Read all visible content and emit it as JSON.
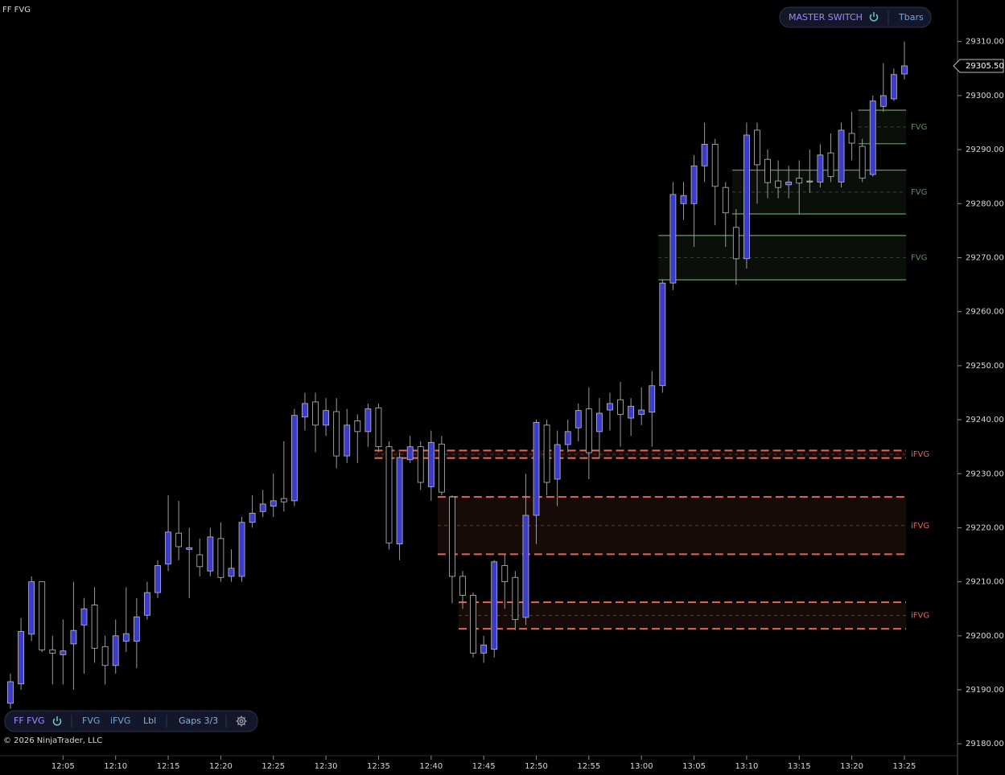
{
  "chart_data": {
    "type": "candlestick",
    "title": "FF FVG",
    "master_switch": "MASTER SWITCH",
    "bar_type": "Tbars",
    "toolbar": [
      "FF FVG",
      "FVG",
      "iFVG",
      "Lbl",
      "Gaps 3/3"
    ],
    "copyright": "© 2026 NinjaTrader, LLC",
    "up_color": "#3c3cc8",
    "down_color": "#000000",
    "x": [
      "12:00",
      "12:01",
      "12:02",
      "12:03",
      "12:04",
      "12:05",
      "12:06",
      "12:07",
      "12:08",
      "12:09",
      "12:10",
      "12:11",
      "12:12",
      "12:13",
      "12:14",
      "12:15",
      "12:16",
      "12:17",
      "12:18",
      "12:19",
      "12:20",
      "12:21",
      "12:22",
      "12:23",
      "12:24",
      "12:25",
      "12:26",
      "12:27",
      "12:28",
      "12:29",
      "12:30",
      "12:31",
      "12:32",
      "12:33",
      "12:34",
      "12:35",
      "12:36",
      "12:37",
      "12:38",
      "12:39",
      "12:40",
      "12:41",
      "12:42",
      "12:43",
      "12:44",
      "12:45",
      "12:46",
      "12:47",
      "12:48",
      "12:49",
      "12:50",
      "12:51",
      "12:52",
      "12:53",
      "12:54",
      "12:55",
      "12:56",
      "12:57",
      "12:58",
      "12:59",
      "13:00",
      "13:01",
      "13:02",
      "13:03",
      "13:04",
      "13:05",
      "13:06",
      "13:07",
      "13:08",
      "13:09",
      "13:10",
      "13:11",
      "13:12",
      "13:13",
      "13:14",
      "13:15",
      "13:16",
      "13:17",
      "13:18",
      "13:19",
      "13:20",
      "13:21",
      "13:22",
      "13:23",
      "13:24",
      "13:25"
    ],
    "open": [
      29187.5,
      29191.1,
      29200.3,
      29210,
      29197.4,
      29196.5,
      29198.5,
      29202,
      29205.7,
      29198,
      29194.5,
      29199,
      29199,
      29203.8,
      29208,
      29213.3,
      29219,
      29216,
      29215,
      29212,
      29218,
      29211,
      29211,
      29221,
      29223,
      29224,
      29225.4,
      29225,
      29240.5,
      29243.3,
      29239,
      29241.5,
      29233.3,
      29239.8,
      29237.8,
      29242.2,
      29235,
      29217,
      29232.6,
      29235,
      29227.6,
      29235.5,
      29225.7,
      29211,
      29207.5,
      29196.8,
      29197.5,
      29213,
      29210.8,
      29203.4,
      29222.3,
      29239,
      29229,
      29235.4,
      29238.5,
      29242,
      29237.8,
      29241.8,
      29243.7,
      29240.3,
      29241,
      29241.4,
      29246.3,
      29265.3,
      29280,
      29280,
      29287,
      29291,
      29283,
      29275.6,
      29269.8,
      29293.6,
      29288.2,
      29284.2,
      29283.5,
      29284.7,
      29284,
      29284,
      29289.4,
      29284,
      29293,
      29290.6,
      29285.4,
      29298,
      29299.4,
      29304
    ],
    "high": [
      29193,
      29203.3,
      29211,
      29210,
      29200,
      29203,
      29210,
      29207,
      29209,
      29200,
      29203,
      29209,
      29207,
      29210,
      29214,
      29226,
      29225,
      29220,
      29218,
      29220,
      29221,
      29216,
      29222,
      29226,
      29227,
      29230,
      29236,
      29242,
      29245,
      29245,
      29244,
      29244,
      29242,
      29241,
      29243,
      29243,
      29236,
      29234,
      29237,
      29236,
      29238,
      29237,
      29226,
      29212,
      29208,
      29200,
      29214,
      29215,
      29212,
      29230,
      29240,
      29240,
      29238,
      29240,
      29243,
      29246,
      29244,
      29245,
      29247,
      29244,
      29246,
      29249,
      29266,
      29284,
      29284,
      29289,
      29295,
      29292,
      29284,
      29279,
      29295,
      29295,
      29290,
      29288,
      29287,
      29288,
      29290,
      29291,
      29293,
      29295,
      29297,
      29292,
      29300,
      29306,
      29305,
      29310
    ],
    "low": [
      29186.5,
      29190,
      29199,
      29197,
      29191,
      29191,
      29190,
      29193,
      29195,
      29191,
      29193,
      29197,
      29194,
      29203,
      29207,
      29212,
      29214,
      29207,
      29211,
      29211,
      29210,
      29210,
      29210,
      29220,
      29222,
      29222,
      29223,
      29224,
      29238,
      29234,
      29237,
      29231,
      29232,
      29232,
      29235,
      29234,
      29216,
      29214,
      29232,
      29227,
      29225,
      29226,
      29206,
      29205,
      29196,
      29195,
      29196,
      29205,
      29201,
      29202,
      29217,
      29226,
      29224,
      29234,
      29236,
      29229,
      29233,
      29238,
      29235,
      29237,
      29239,
      29235,
      29245,
      29264,
      29277,
      29272,
      29284,
      29276,
      29272,
      29265,
      29268,
      29280,
      29281,
      29281,
      29281,
      29278,
      29282,
      29283,
      29284,
      29283,
      29288,
      29284,
      29285,
      29297,
      29299,
      29303
    ],
    "close": [
      29191.5,
      29200.8,
      29210,
      29197.4,
      29196.8,
      29197.2,
      29201,
      29205,
      29197.7,
      29194.5,
      29200,
      29200.4,
      29203.5,
      29208,
      29213,
      29219.2,
      29216.5,
      29216.3,
      29212.8,
      29218.3,
      29210.8,
      29212.5,
      29221,
      29222.7,
      29224.4,
      29225,
      29224.8,
      29240.8,
      29243,
      29239,
      29241.7,
      29233.3,
      29239,
      29237.8,
      29242,
      29235,
      29217.2,
      29233,
      29235,
      29228.4,
      29235.8,
      29226.6,
      29211,
      29207.5,
      29196.8,
      29198.3,
      29213.7,
      29210,
      29203,
      29222.3,
      29239.5,
      29228.4,
      29235.4,
      29237.8,
      29241.7,
      29233.9,
      29241.2,
      29243,
      29241,
      29242.5,
      29241.8,
      29246.3,
      29265.3,
      29281.7,
      29281.5,
      29287,
      29291,
      29283.2,
      29278.3,
      29269.8,
      29292.7,
      29287.2,
      29283.9,
      29283,
      29284,
      29283.8,
      29284.2,
      29289,
      29285,
      29293.6,
      29291.2,
      29284.7,
      29299,
      29300,
      29303.9,
      29305.5
    ],
    "zones": [
      {
        "label": "FVG",
        "top": 29297.3,
        "bottom": 29291.1,
        "start": "13:21",
        "color": "#5e8f5e",
        "dashed": false
      },
      {
        "label": "FVG",
        "top": 29286.2,
        "bottom": 29278.1,
        "start": "13:09",
        "color": "#5e8f5e",
        "dashed": false
      },
      {
        "label": "FVG",
        "top": 29274.1,
        "bottom": 29265.9,
        "start": "13:02",
        "color": "#5e8f5e",
        "dashed": false
      },
      {
        "label": "iFVG",
        "top": 29234.3,
        "bottom": 29232.9,
        "start": "12:35",
        "color": "#e0685a",
        "dashed": true
      },
      {
        "label": "iFVG",
        "top": 29225.7,
        "bottom": 29215.1,
        "start": "12:41",
        "color": "#e0685a",
        "dashed": true
      },
      {
        "label": "iFVG",
        "top": 29206.2,
        "bottom": 29201.3,
        "start": "12:43",
        "color": "#e0685a",
        "dashed": true
      }
    ],
    "last_price": {
      "value": 29305.5,
      "label": "29305.50"
    },
    "ylim": [
      29177.8,
      29317.7
    ],
    "yticks": [
      {
        "value": 29180,
        "label": "29180.00"
      },
      {
        "value": 29190,
        "label": "29190.00"
      },
      {
        "value": 29200,
        "label": "29200.00"
      },
      {
        "value": 29210,
        "label": "29210.00"
      },
      {
        "value": 29220,
        "label": "29220.00"
      },
      {
        "value": 29230,
        "label": "29230.00"
      },
      {
        "value": 29240,
        "label": "29240.00"
      },
      {
        "value": 29250,
        "label": "29250.00"
      },
      {
        "value": 29260,
        "label": "29260.00"
      },
      {
        "value": 29270,
        "label": "29270.00"
      },
      {
        "value": 29280,
        "label": "29280.00"
      },
      {
        "value": 29290,
        "label": "29290.00"
      },
      {
        "value": 29300,
        "label": "29300.00"
      },
      {
        "value": 29310,
        "label": "29310.00"
      }
    ],
    "xticks": [
      "12:05",
      "12:10",
      "12:15",
      "12:20",
      "12:25",
      "12:30",
      "12:35",
      "12:40",
      "12:45",
      "12:50",
      "12:55",
      "13:00",
      "13:05",
      "13:10",
      "13:15",
      "13:20",
      "13:25"
    ]
  }
}
